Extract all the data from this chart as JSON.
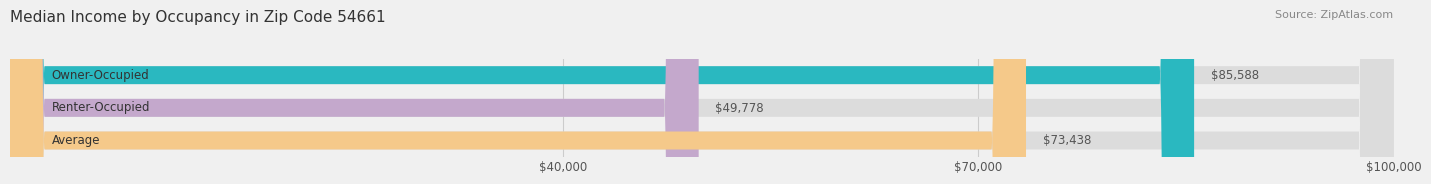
{
  "title": "Median Income by Occupancy in Zip Code 54661",
  "source": "Source: ZipAtlas.com",
  "categories": [
    "Owner-Occupied",
    "Renter-Occupied",
    "Average"
  ],
  "values": [
    85588,
    49778,
    73438
  ],
  "bar_colors": [
    "#2ab8c0",
    "#c4a8cc",
    "#f5c98a"
  ],
  "label_texts": [
    "$85,588",
    "$49,778",
    "$73,438"
  ],
  "xlim": [
    0,
    100000
  ],
  "xticks": [
    40000,
    70000,
    100000
  ],
  "xtick_labels": [
    "$40,000",
    "$70,000",
    "$100,000"
  ],
  "bar_height": 0.55,
  "background_color": "#f0f0f0",
  "bar_bg_color": "#dcdcdc",
  "title_fontsize": 11,
  "label_fontsize": 8.5,
  "tick_fontsize": 8.5,
  "source_fontsize": 8
}
